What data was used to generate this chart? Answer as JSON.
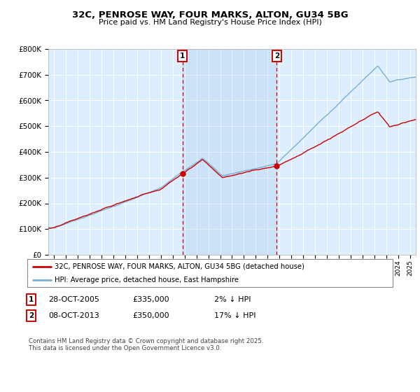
{
  "title": "32C, PENROSE WAY, FOUR MARKS, ALTON, GU34 5BG",
  "subtitle": "Price paid vs. HM Land Registry's House Price Index (HPI)",
  "hpi_color": "#7ab0d4",
  "property_color": "#cc0000",
  "annotation_color": "#cc0000",
  "plot_bg": "#ddeeff",
  "grid_color": "#ffffff",
  "vline_color": "#cc0000",
  "sale1_date": 2005.83,
  "sale1_price": 335000,
  "sale1_label": "1",
  "sale2_date": 2013.77,
  "sale2_price": 350000,
  "sale2_label": "2",
  "ylim_min": 0,
  "ylim_max": 800000,
  "xlim_min": 1994.5,
  "xlim_max": 2025.5,
  "footer": "Contains HM Land Registry data © Crown copyright and database right 2025.\nThis data is licensed under the Open Government Licence v3.0.",
  "legend1_label": "32C, PENROSE WAY, FOUR MARKS, ALTON, GU34 5BG (detached house)",
  "legend2_label": "HPI: Average price, detached house, East Hampshire"
}
